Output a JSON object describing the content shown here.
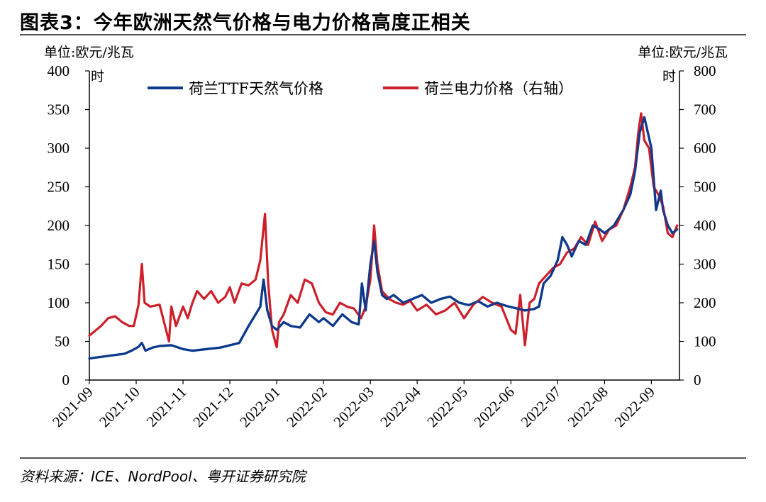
{
  "header": {
    "title": "图表3：今年欧洲天然气价格与电力价格高度正相关"
  },
  "footer": {
    "source": "资料来源：ICE、NordPool、粤开证券研究院"
  },
  "chart_data": {
    "type": "line",
    "left_unit": [
      "单位:欧元/兆瓦",
      "时"
    ],
    "right_unit": [
      "单位:欧元/兆瓦",
      "时"
    ],
    "left_axis": {
      "ylim": [
        0,
        400
      ],
      "ticks": [
        "0",
        "50",
        "100",
        "150",
        "200",
        "250",
        "300",
        "350",
        "400"
      ]
    },
    "right_axis": {
      "ylim": [
        0,
        800
      ],
      "ticks": [
        "0",
        "100",
        "200",
        "300",
        "400",
        "500",
        "600",
        "700",
        "800"
      ]
    },
    "x_ticks": [
      "2021-09",
      "2021-10",
      "2021-11",
      "2021-12",
      "2022-01",
      "2022-02",
      "2022-03",
      "2022-04",
      "2022-05",
      "2022-06",
      "2022-07",
      "2022-08",
      "2022-09"
    ],
    "x_range_months": [
      0,
      12.6
    ],
    "series": [
      {
        "name": "荷兰TTF天然气价格",
        "axis": "left",
        "color": "#0d3a8c",
        "x": [
          0,
          0.25,
          0.5,
          0.75,
          0.9,
          1.05,
          1.12,
          1.2,
          1.35,
          1.5,
          1.75,
          2.0,
          2.2,
          2.5,
          2.8,
          3.0,
          3.2,
          3.4,
          3.55,
          3.65,
          3.72,
          3.8,
          3.9,
          4.0,
          4.15,
          4.3,
          4.5,
          4.7,
          4.9,
          5.0,
          5.2,
          5.4,
          5.6,
          5.75,
          5.82,
          5.9,
          6.0,
          6.08,
          6.15,
          6.25,
          6.35,
          6.5,
          6.7,
          6.9,
          7.1,
          7.3,
          7.5,
          7.7,
          7.9,
          8.1,
          8.3,
          8.5,
          8.7,
          8.9,
          9.1,
          9.3,
          9.5,
          9.6,
          9.7,
          9.85,
          10.0,
          10.1,
          10.2,
          10.3,
          10.45,
          10.6,
          10.75,
          10.9,
          11.0,
          11.2,
          11.4,
          11.55,
          11.65,
          11.75,
          11.85,
          12.0,
          12.1,
          12.2,
          12.25,
          12.35,
          12.45,
          12.55
        ],
        "values": [
          28,
          30,
          32,
          34,
          38,
          43,
          48,
          38,
          42,
          44,
          45,
          40,
          38,
          40,
          42,
          45,
          48,
          70,
          85,
          95,
          130,
          90,
          70,
          65,
          75,
          70,
          68,
          85,
          75,
          80,
          70,
          85,
          75,
          72,
          125,
          90,
          150,
          180,
          140,
          110,
          105,
          110,
          100,
          105,
          110,
          100,
          105,
          108,
          100,
          97,
          102,
          95,
          100,
          96,
          93,
          90,
          92,
          95,
          125,
          135,
          155,
          185,
          175,
          160,
          180,
          175,
          200,
          195,
          190,
          200,
          220,
          240,
          270,
          320,
          340,
          300,
          220,
          245,
          220,
          200,
          190,
          195
        ]
      },
      {
        "name": "荷兰电力价格（右轴）",
        "axis": "right",
        "color": "#cc1f29",
        "x": [
          0,
          0.1,
          0.25,
          0.4,
          0.55,
          0.7,
          0.85,
          0.95,
          1.05,
          1.12,
          1.18,
          1.3,
          1.5,
          1.7,
          1.75,
          1.85,
          2.0,
          2.1,
          2.2,
          2.3,
          2.45,
          2.6,
          2.75,
          2.9,
          3.0,
          3.1,
          3.25,
          3.4,
          3.55,
          3.65,
          3.75,
          3.82,
          3.9,
          4.0,
          4.05,
          4.15,
          4.3,
          4.45,
          4.6,
          4.75,
          4.9,
          5.05,
          5.2,
          5.35,
          5.5,
          5.65,
          5.8,
          5.9,
          6.0,
          6.08,
          6.15,
          6.25,
          6.4,
          6.55,
          6.7,
          6.85,
          7.0,
          7.2,
          7.4,
          7.6,
          7.8,
          8.0,
          8.2,
          8.4,
          8.6,
          8.8,
          9.0,
          9.1,
          9.2,
          9.3,
          9.4,
          9.5,
          9.6,
          9.75,
          9.9,
          10.05,
          10.2,
          10.35,
          10.5,
          10.65,
          10.8,
          10.95,
          11.1,
          11.25,
          11.4,
          11.55,
          11.65,
          11.72,
          11.78,
          11.85,
          11.95,
          12.05,
          12.15,
          12.25,
          12.35,
          12.45,
          12.55
        ],
        "values": [
          115,
          125,
          140,
          160,
          165,
          150,
          140,
          140,
          195,
          300,
          200,
          190,
          195,
          100,
          190,
          140,
          190,
          160,
          200,
          230,
          210,
          230,
          200,
          215,
          240,
          200,
          250,
          245,
          260,
          310,
          430,
          250,
          130,
          85,
          150,
          170,
          220,
          200,
          260,
          250,
          200,
          175,
          170,
          200,
          190,
          185,
          160,
          190,
          260,
          400,
          300,
          230,
          210,
          200,
          195,
          205,
          180,
          195,
          170,
          180,
          200,
          160,
          195,
          215,
          200,
          190,
          130,
          120,
          220,
          90,
          200,
          210,
          250,
          270,
          290,
          300,
          330,
          340,
          370,
          350,
          410,
          360,
          390,
          400,
          440,
          500,
          550,
          640,
          690,
          620,
          600,
          500,
          480,
          450,
          380,
          370,
          400
        ]
      }
    ]
  }
}
